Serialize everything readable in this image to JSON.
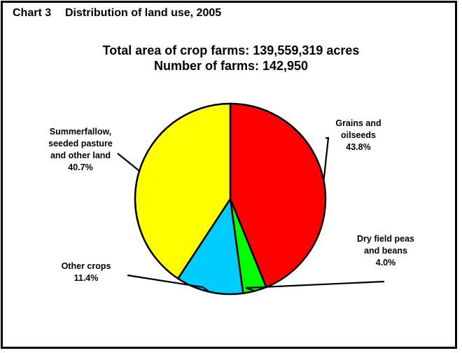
{
  "header": {
    "chart_number": "Chart 3",
    "chart_title": "Distribution of land use, 2005"
  },
  "subtitles": [
    "Total area of crop farms: 139,559,319 acres",
    "Number of farms: 142,950"
  ],
  "chart_data": {
    "type": "pie",
    "title": "Distribution of land use, 2005",
    "slices": [
      {
        "label_lines": [
          "Grains and",
          "oilseeds"
        ],
        "value": 43.8,
        "pct_label": "43.8%",
        "color": "#ff0000"
      },
      {
        "label_lines": [
          "Dry field peas",
          "and beans"
        ],
        "value": 4.0,
        "pct_label": "4.0%",
        "color": "#00ff00"
      },
      {
        "label_lines": [
          "Other crops"
        ],
        "value": 11.4,
        "pct_label": "11.4%",
        "color": "#00ccff"
      },
      {
        "label_lines": [
          "Summerfallow,",
          "seeded pasture",
          "and other land"
        ],
        "value": 40.7,
        "pct_label": "40.7%",
        "color": "#ffff00"
      }
    ],
    "start": "12 o'clock",
    "direction": "clockwise",
    "legend": "none"
  }
}
